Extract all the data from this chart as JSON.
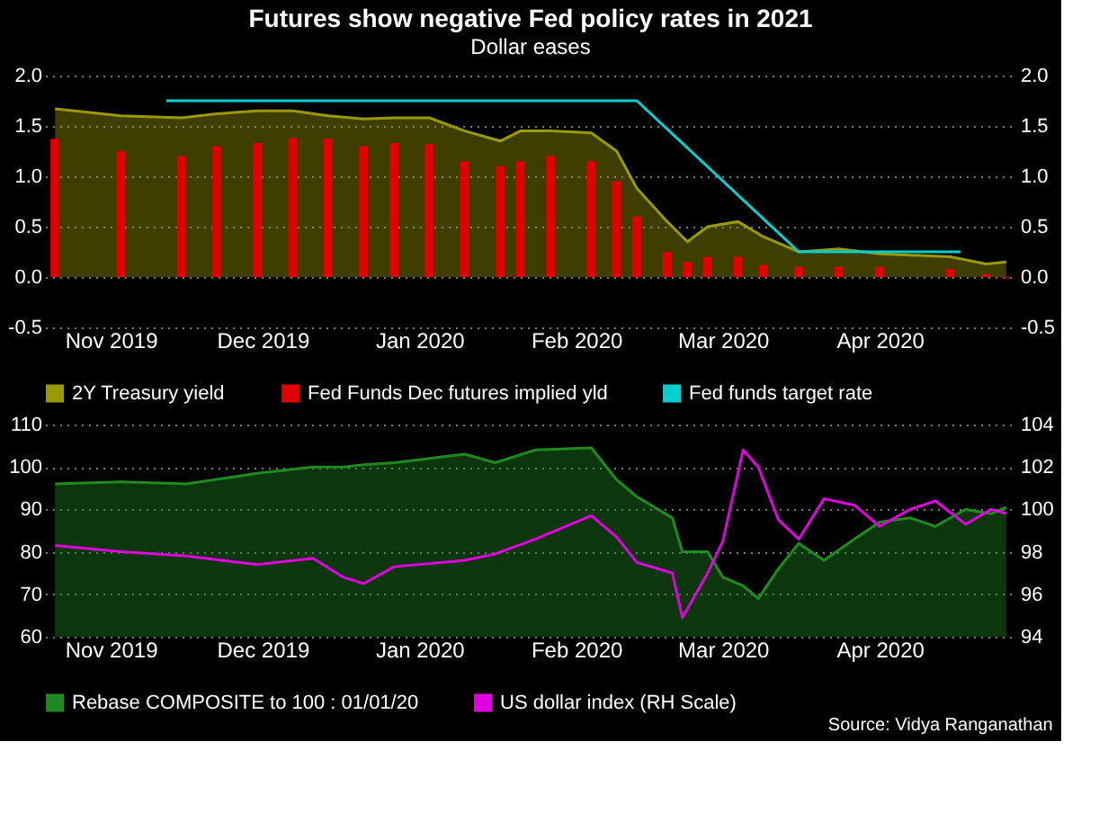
{
  "chart_data": [
    {
      "type": "bar",
      "title": "Futures show negative Fed policy rates in 2021",
      "subtitle": "Dollar eases",
      "x": [
        "2019-10-21",
        "2019-11-03",
        "2019-11-15",
        "2019-11-22",
        "2019-11-30",
        "2019-12-07",
        "2019-12-14",
        "2019-12-21",
        "2019-12-27",
        "2020-01-03",
        "2020-01-10",
        "2020-01-17",
        "2020-01-21",
        "2020-01-27",
        "2020-02-04",
        "2020-02-09",
        "2020-02-13",
        "2020-02-19",
        "2020-02-23",
        "2020-02-27",
        "2020-03-04",
        "2020-03-09",
        "2020-03-16",
        "2020-03-24",
        "2020-04-01",
        "2020-04-15",
        "2020-04-22",
        "2020-04-26"
      ],
      "series": [
        {
          "name": "2Y Treasury yield",
          "type": "area",
          "color": "#9a9a00",
          "values": [
            1.67,
            1.6,
            1.58,
            1.62,
            1.65,
            1.65,
            1.6,
            1.57,
            1.58,
            1.58,
            1.45,
            1.35,
            1.45,
            1.45,
            1.43,
            1.25,
            0.88,
            0.55,
            0.35,
            0.5,
            0.55,
            0.4,
            0.25,
            0.28,
            0.23,
            0.2,
            0.13,
            0.15
          ]
        },
        {
          "name": "Fed Funds Dec futures implied yld",
          "color": "#e00000",
          "values": [
            1.37,
            1.25,
            1.2,
            1.3,
            1.33,
            1.38,
            1.37,
            1.3,
            1.33,
            1.32,
            1.15,
            1.1,
            1.15,
            1.2,
            1.15,
            0.95,
            0.6,
            0.25,
            0.15,
            0.2,
            0.2,
            0.12,
            0.1,
            0.1,
            0.1,
            0.08,
            0.03,
            -0.01
          ]
        },
        {
          "name": "Fed funds target rate",
          "type": "line",
          "color": "#00d0d0",
          "x": [
            "2019-11-12",
            "2020-02-13",
            "2020-03-16",
            "2020-04-17"
          ],
          "values": [
            1.75,
            1.75,
            0.25,
            0.25
          ]
        }
      ],
      "xlim": [
        "2019-10-19",
        "2020-04-28"
      ],
      "xticks": [
        {
          "value": "2019-11-01",
          "label": "Nov 2019"
        },
        {
          "value": "2019-12-01",
          "label": "Dec 2019"
        },
        {
          "value": "2020-01-01",
          "label": "Jan 2020"
        },
        {
          "value": "2020-02-01",
          "label": "Feb 2020"
        },
        {
          "value": "2020-03-01",
          "label": "Mar 2020"
        },
        {
          "value": "2020-04-01",
          "label": "Apr 2020"
        }
      ],
      "ylim": [
        -0.5,
        2.0
      ],
      "yticks": [
        {
          "value": -0.5,
          "label": "-0.5"
        },
        {
          "value": 0,
          "label": "0.0"
        },
        {
          "value": 0.5,
          "label": "0.5"
        },
        {
          "value": 1,
          "label": "1.0"
        },
        {
          "value": 1.5,
          "label": "1.5"
        },
        {
          "value": 2,
          "label": "2.0"
        }
      ],
      "y2lim": [
        -0.5,
        2.0
      ],
      "y2ticks": [
        {
          "value": -0.5,
          "label": "-0.5"
        },
        {
          "value": 0,
          "label": "0.0"
        },
        {
          "value": 0.5,
          "label": "0.5"
        },
        {
          "value": 1,
          "label": "1.0"
        },
        {
          "value": 1.5,
          "label": "1.5"
        },
        {
          "value": 2,
          "label": "2.0"
        }
      ],
      "grid": "y",
      "legend": "bottom"
    },
    {
      "type": "area",
      "annotations": [
        "Source: Vidya Ranganathan"
      ],
      "x": [
        "2019-10-21",
        "2019-11-03",
        "2019-11-16",
        "2019-11-30",
        "2019-12-11",
        "2019-12-17",
        "2019-12-21",
        "2019-12-27",
        "2020-01-10",
        "2020-01-16",
        "2020-01-24",
        "2020-02-04",
        "2020-02-09",
        "2020-02-13",
        "2020-02-20",
        "2020-02-22",
        "2020-02-27",
        "2020-03-01",
        "2020-03-05",
        "2020-03-08",
        "2020-03-12",
        "2020-03-16",
        "2020-03-21",
        "2020-03-27",
        "2020-04-01",
        "2020-04-07",
        "2020-04-12",
        "2020-04-18",
        "2020-04-23",
        "2020-04-26"
      ],
      "series": [
        {
          "name": "Rebase COMPOSITE to 100 : 01/01/20",
          "color": "#1f8a1f",
          "values": [
            96,
            96.5,
            96,
            98.5,
            100,
            100,
            100.5,
            101,
            103,
            101,
            104,
            104.5,
            97,
            93,
            88,
            80,
            80,
            74,
            72,
            69,
            76,
            82,
            78,
            83,
            87,
            88,
            86,
            90,
            89,
            90.5
          ]
        },
        {
          "name": "US dollar index (RH Scale)",
          "type": "line",
          "axis": "y2",
          "color": "#e000e0",
          "values": [
            98.3,
            98.0,
            97.8,
            97.4,
            97.7,
            96.8,
            96.5,
            97.3,
            97.6,
            97.9,
            98.6,
            99.7,
            98.7,
            97.5,
            97,
            94.9,
            97,
            98.5,
            102.8,
            102,
            99.5,
            98.6,
            100.5,
            100.2,
            99.2,
            100,
            100.4,
            99.3,
            100,
            99.8
          ]
        }
      ],
      "xlim": [
        "2019-10-19",
        "2020-04-28"
      ],
      "xticks": [
        {
          "value": "2019-11-01",
          "label": "Nov 2019"
        },
        {
          "value": "2019-12-01",
          "label": "Dec 2019"
        },
        {
          "value": "2020-01-01",
          "label": "Jan 2020"
        },
        {
          "value": "2020-02-01",
          "label": "Feb 2020"
        },
        {
          "value": "2020-03-01",
          "label": "Mar 2020"
        },
        {
          "value": "2020-04-01",
          "label": "Apr 2020"
        }
      ],
      "ylim": [
        60,
        110
      ],
      "yticks": [
        60,
        70,
        80,
        90,
        100,
        110
      ],
      "y2lim": [
        94,
        104
      ],
      "y2ticks": [
        94,
        96,
        98,
        100,
        102,
        104
      ],
      "grid": "y",
      "legend": "bottom"
    }
  ]
}
